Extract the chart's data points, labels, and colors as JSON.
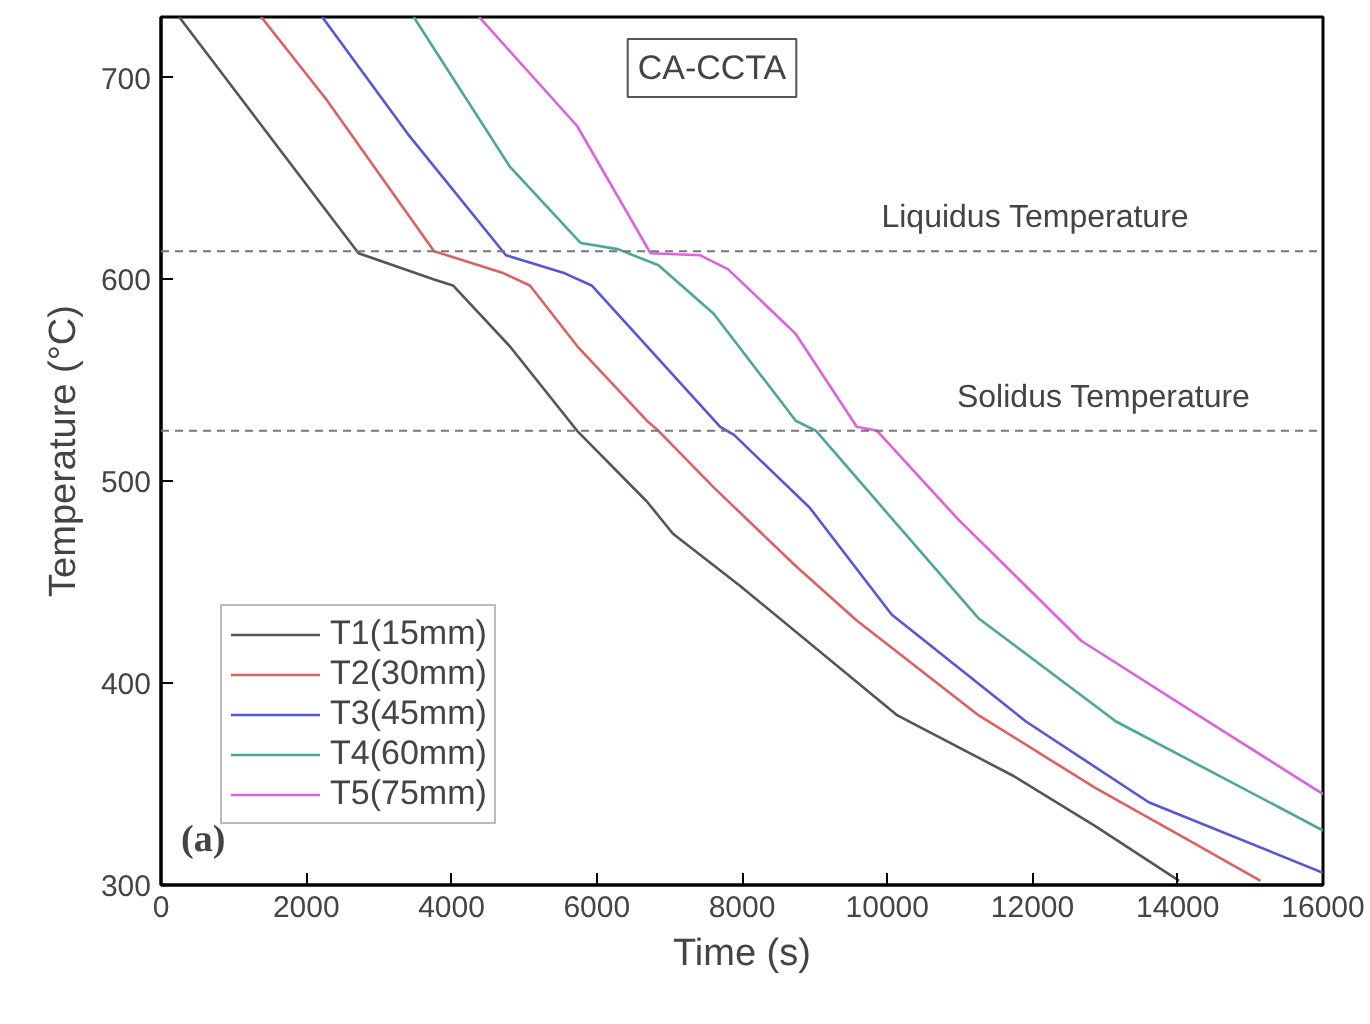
{
  "chart_data": {
    "type": "line",
    "xlabel": "Time (s)",
    "ylabel": "Temperature (°C)",
    "xlim": [
      0,
      16000
    ],
    "ylim": [
      300,
      730
    ],
    "xticks": [
      0,
      2000,
      4000,
      6000,
      8000,
      10000,
      12000,
      14000,
      16000
    ],
    "yticks": [
      300,
      400,
      500,
      600,
      700
    ],
    "grid": false,
    "legend": "bottom left",
    "line_style": "solid",
    "series": [
      {
        "name": "T1(15mm)",
        "color": "#555555",
        "x": [
          250,
          2720,
          3760,
          4020,
          4800,
          5730,
          6690,
          7050,
          7980,
          10140,
          11740,
          12870,
          14020
        ],
        "values": [
          730,
          613,
          600,
          597,
          567,
          525,
          490,
          474,
          448,
          384,
          354,
          329,
          302
        ]
      },
      {
        "name": "T2(30mm)",
        "color": "#e06060",
        "x": [
          1380,
          2280,
          3760,
          4720,
          5080,
          5730,
          6690,
          6850,
          7610,
          8740,
          9580,
          11260,
          12870,
          14160,
          15140
        ],
        "values": [
          730,
          689,
          614,
          603,
          597,
          567,
          530,
          525,
          497,
          458,
          431,
          384,
          348,
          322,
          302
        ]
      },
      {
        "name": "T3(45mm)",
        "color": "#5555dd",
        "x": [
          2220,
          3400,
          4750,
          5560,
          5930,
          6690,
          7700,
          7890,
          8930,
          10060,
          11910,
          13600,
          16000
        ],
        "values": [
          730,
          672,
          612,
          603,
          597,
          567,
          527,
          523,
          487,
          434,
          381,
          341,
          306
        ]
      },
      {
        "name": "T4(60mm)",
        "color": "#4aa898",
        "x": [
          3480,
          4800,
          5780,
          6290,
          6850,
          7610,
          8740,
          9020,
          9860,
          11260,
          13150,
          16000
        ],
        "values": [
          730,
          656,
          618,
          615,
          607,
          583,
          530,
          525,
          490,
          432,
          381,
          327
        ]
      },
      {
        "name": "T5(75mm)",
        "color": "#e060e0",
        "x": [
          4380,
          5730,
          6740,
          7420,
          7810,
          8740,
          9580,
          9860,
          10980,
          12670,
          14550,
          16000
        ],
        "values": [
          730,
          676,
          613,
          612,
          605,
          573,
          527,
          525,
          481,
          421,
          378,
          345
        ]
      }
    ],
    "ref_lines": [
      {
        "axis": "y",
        "value": 614,
        "label": "Liquidus Temperature",
        "color": "#777777",
        "line_style": "dashed"
      },
      {
        "axis": "y",
        "value": 525,
        "label": "Solidus Temperature",
        "color": "#777777",
        "line_style": "dashed"
      }
    ],
    "annotations": [
      "CA-CCTA",
      "(a)"
    ]
  }
}
